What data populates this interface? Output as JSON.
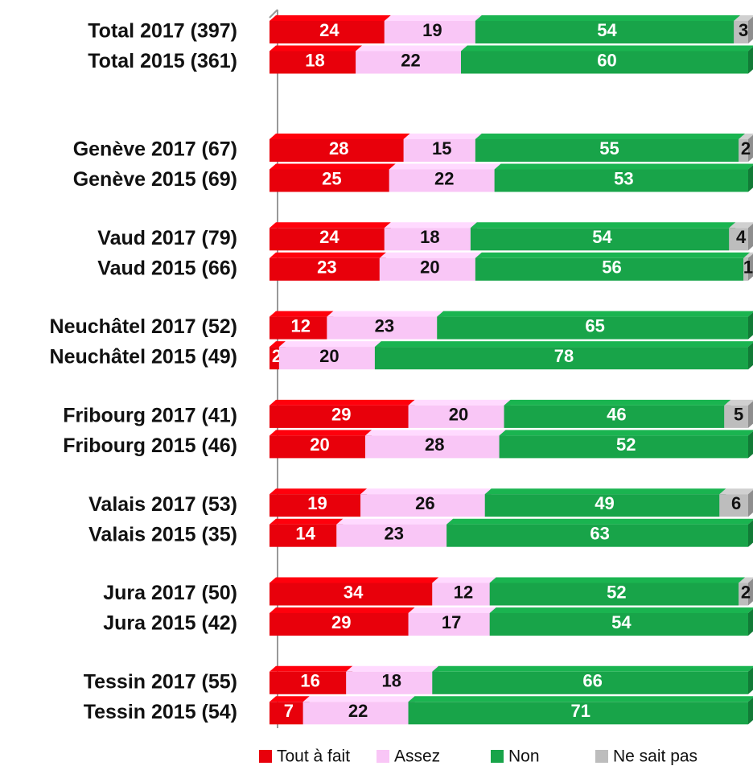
{
  "chart_data": {
    "type": "stacked_bar_horizontal",
    "categories": [
      "Total 2017 (397)",
      "Total 2015 (361)",
      "Genève 2017 (67)",
      "Genève 2015 (69)",
      "Vaud 2017 (79)",
      "Vaud 2015 (66)",
      "Neuchâtel 2017 (52)",
      "Neuchâtel 2015 (49)",
      "Fribourg 2017 (41)",
      "Fribourg 2015 (46)",
      "Valais 2017 (53)",
      "Valais 2015 (35)",
      "Jura 2017 (50)",
      "Jura 2015 (42)",
      "Tessin 2017 (55)",
      "Tessin 2015 (54)"
    ],
    "series": [
      {
        "name": "Tout à fait",
        "color": "#e8000b",
        "values": [
          24,
          18,
          28,
          25,
          24,
          23,
          12,
          2,
          29,
          20,
          19,
          14,
          34,
          29,
          16,
          7
        ]
      },
      {
        "name": "Assez",
        "color": "#f9c6f6",
        "values": [
          19,
          22,
          15,
          22,
          18,
          20,
          23,
          20,
          20,
          28,
          26,
          23,
          12,
          17,
          18,
          22
        ]
      },
      {
        "name": "Non",
        "color": "#18a449",
        "values": [
          54,
          60,
          55,
          53,
          54,
          56,
          65,
          78,
          46,
          52,
          49,
          63,
          52,
          54,
          66,
          71
        ]
      },
      {
        "name": "Ne sait pas",
        "color": "#bdbdbd",
        "values": [
          3,
          null,
          2,
          null,
          4,
          1,
          null,
          null,
          5,
          null,
          6,
          null,
          2,
          null,
          null,
          null
        ]
      }
    ],
    "xlim": [
      0,
      100
    ]
  }
}
